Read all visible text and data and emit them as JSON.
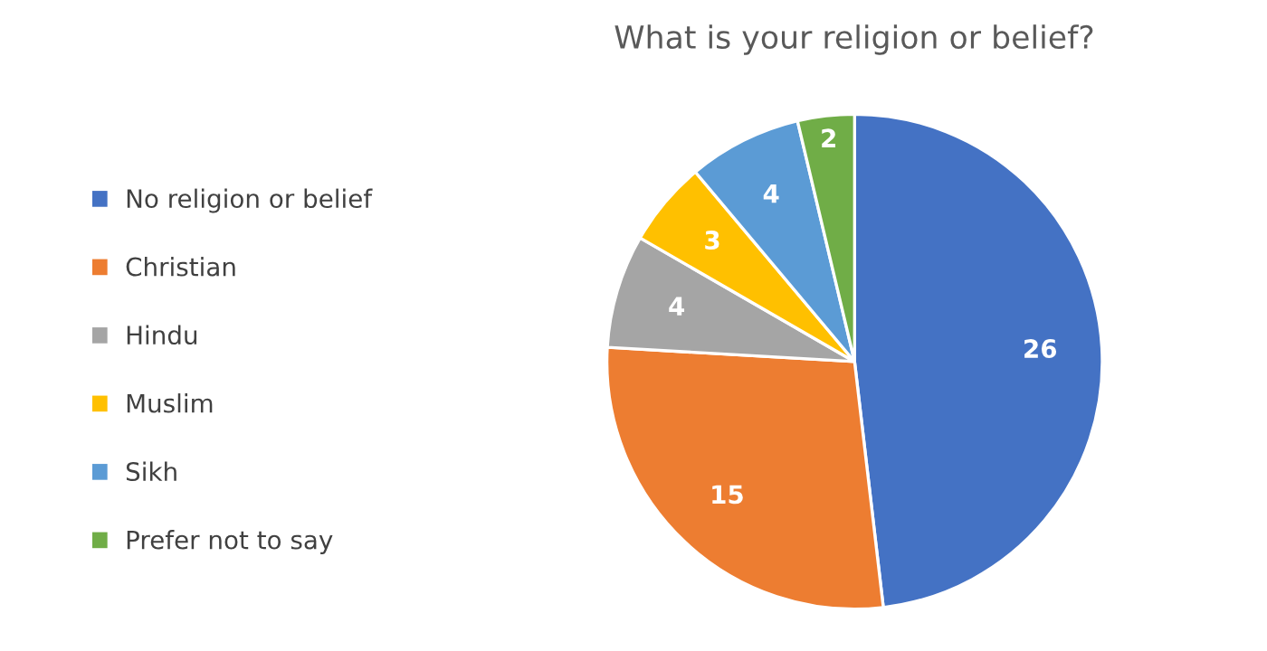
{
  "chart_data": {
    "type": "pie",
    "title": "What is your religion or belief?",
    "categories": [
      "No religion or belief",
      "Christian",
      "Hindu",
      "Muslim",
      "Sikh",
      "Prefer not to say"
    ],
    "values": [
      26,
      15,
      4,
      3,
      4,
      2
    ],
    "colors": [
      "#4472c4",
      "#ed7d31",
      "#a5a5a5",
      "#ffc000",
      "#5b9bd5",
      "#70ad47"
    ],
    "data_labels": true,
    "legend": "left"
  }
}
